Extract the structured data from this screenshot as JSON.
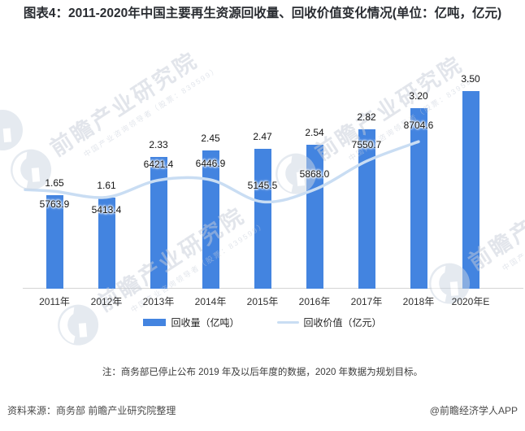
{
  "title": "图表4：2011-2020年中国主要再生资源回收量、回收价值变化情况(单位：亿吨，亿元)",
  "chart_data": {
    "type": "bar",
    "combo": "bar+line",
    "categories": [
      "2011年",
      "2012年",
      "2013年",
      "2014年",
      "2015年",
      "2016年",
      "2017年",
      "2018年",
      "2020年E"
    ],
    "series": [
      {
        "name": "回收量（亿吨）",
        "type": "bar",
        "values": [
          1.65,
          1.61,
          2.33,
          2.45,
          2.47,
          2.54,
          2.82,
          3.2,
          3.5
        ],
        "labels": [
          "1.65",
          "1.61",
          "2.33",
          "2.45",
          "2.47",
          "2.54",
          "2.82",
          "3.20",
          "3.50"
        ]
      },
      {
        "name": "回收价值（亿元）",
        "type": "line",
        "values": [
          5763.9,
          5413.4,
          6421.4,
          6446.9,
          5145.5,
          5868.0,
          7550.7,
          8704.6,
          null
        ],
        "labels": [
          "5763.9",
          "5413.4",
          "6421.4",
          "6446.9",
          "5145.5",
          "5868.0",
          "7550.7",
          "8704.6",
          ""
        ]
      }
    ],
    "ylabel": "",
    "xlabel": "",
    "y_axis_bar_range": [
      0,
      4
    ],
    "y_axis_line_range": [
      0,
      13000
    ],
    "axes_hidden": true,
    "grid": false,
    "legend_position": "bottom"
  },
  "colors": {
    "bar": "#4384e0",
    "line": "#c9ddf3",
    "axis": "#d4d4d4",
    "watermark": "#c6cdd9"
  },
  "note": "注：商务部已停止公布 2019 年及以后年度的数据，2020 年数据为规划目标。",
  "footer": {
    "source": "资料来源：商务部 前瞻产业研究院整理",
    "credit": "@前瞻经济学人APP"
  },
  "watermark": {
    "big": "前瞻产业研究院",
    "small": "中国产业咨询领导者（股票：839599）"
  }
}
